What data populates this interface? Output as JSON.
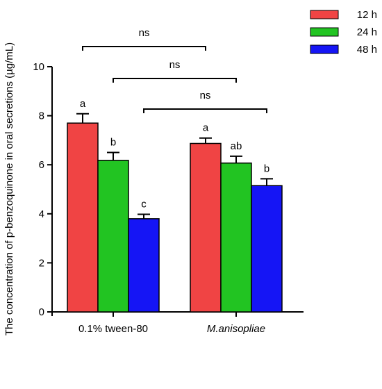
{
  "chart_data": {
    "type": "bar",
    "ylabel": "The concentration of p-benzoquinone in oral secretions (µg/mL)",
    "xlabel": "",
    "ylim": [
      0,
      10
    ],
    "yticks": [
      "0",
      "2",
      "4",
      "6",
      "8",
      "10"
    ],
    "categories": [
      "0.1% tween-80",
      "M.anisopliae"
    ],
    "category_italic": [
      false,
      true
    ],
    "series": [
      {
        "name": "12 h",
        "color": "#f04444",
        "values": [
          7.7,
          6.87
        ],
        "errors": [
          0.38,
          0.22
        ],
        "letters": [
          "a",
          "a"
        ]
      },
      {
        "name": "24 h",
        "color": "#22c422",
        "values": [
          6.18,
          6.07
        ],
        "errors": [
          0.32,
          0.28
        ],
        "letters": [
          "b",
          "ab"
        ]
      },
      {
        "name": "48 h",
        "color": "#1515f5",
        "values": [
          3.8,
          5.15
        ],
        "errors": [
          0.18,
          0.28
        ],
        "letters": [
          "c",
          "b"
        ]
      }
    ],
    "comparisons": [
      {
        "label": "ns",
        "from_series": 0,
        "to_series": 0
      },
      {
        "label": "ns",
        "from_series": 1,
        "to_series": 1
      },
      {
        "label": "ns",
        "from_series": 2,
        "to_series": 2
      }
    ],
    "legend": "top-right",
    "grid": false
  }
}
